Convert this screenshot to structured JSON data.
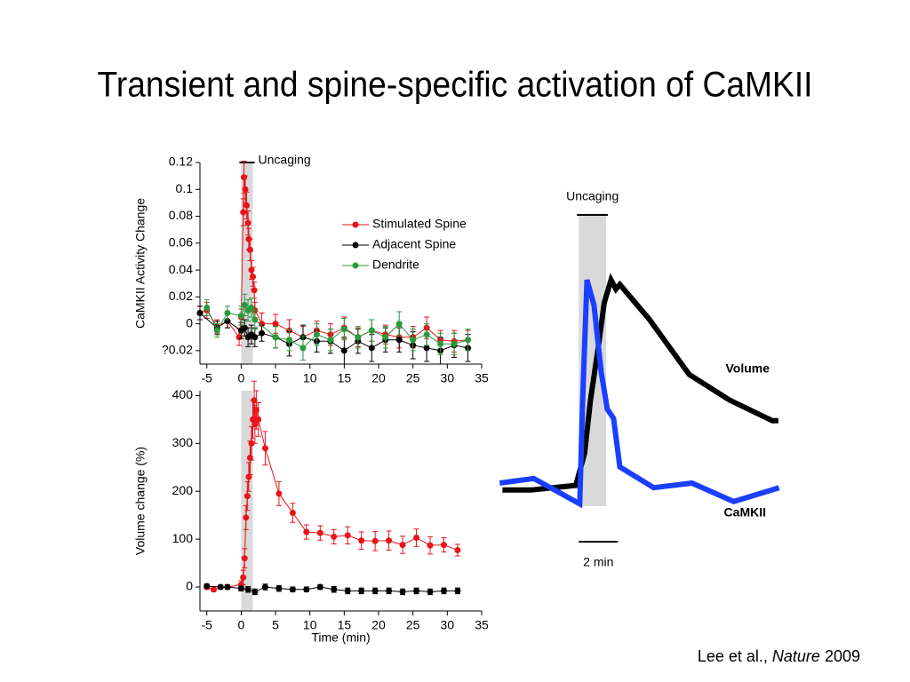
{
  "title": "Transient and spine-specific activation of CaMKII",
  "citation": {
    "authors": "Lee et al.,",
    "journal": "Nature",
    "year": "2009"
  },
  "chart_data": [
    {
      "type": "line",
      "ylabel": "CaMKII Activity Change",
      "xlim": [
        -6,
        35
      ],
      "xticks": [
        -5,
        0,
        5,
        10,
        15,
        20,
        25,
        30,
        35
      ],
      "ylim": [
        -0.03,
        0.12
      ],
      "yticks": [
        {
          "value": -0.02,
          "label": "?0.02"
        },
        0,
        0.02,
        0.04,
        0.06,
        0.08,
        0.1,
        0.12
      ],
      "shade": [
        0,
        1.7
      ],
      "shade_label": "Uncaging",
      "legend": "upper right",
      "series": [
        {
          "name": "Stimulated Spine",
          "color": "#e8141b",
          "x": [
            -6,
            -5,
            -3.5,
            -2,
            -0.3,
            0,
            0.3,
            0.4,
            0.6,
            0.8,
            1,
            1.1,
            1.3,
            1.5,
            1.7,
            1.9,
            2,
            3,
            5,
            7,
            9,
            11,
            13,
            15,
            17,
            19,
            21,
            23,
            25,
            27,
            29,
            31,
            33
          ],
          "values": [
            0.008,
            0.01,
            -0.002,
            0.002,
            -0.01,
            0.005,
            0.083,
            0.109,
            0.1,
            0.088,
            0.075,
            0.063,
            0.055,
            0.04,
            0.035,
            0.025,
            0.01,
            0,
            0,
            -0.005,
            -0.01,
            -0.005,
            -0.008,
            -0.003,
            -0.01,
            -0.005,
            -0.008,
            -0.01,
            -0.01,
            -0.003,
            -0.012,
            -0.013,
            -0.012
          ],
          "errors": [
            0.005,
            0.006,
            0.005,
            0.005,
            0.006,
            0.006,
            0.01,
            0.012,
            0.01,
            0.01,
            0.009,
            0.008,
            0.008,
            0.007,
            0.007,
            0.006,
            0.006,
            0.008,
            0.007,
            0.008,
            0.008,
            0.007,
            0.008,
            0.008,
            0.007,
            0.008,
            0.007,
            0.008,
            0.008,
            0.008,
            0.007,
            0.008,
            0.007
          ]
        },
        {
          "name": "Adjacent Spine",
          "color": "#000000",
          "x": [
            -6,
            -3.5,
            -2,
            0,
            0.5,
            1,
            1.5,
            2,
            3,
            5,
            7,
            9,
            11,
            13,
            15,
            17,
            19,
            21,
            23,
            25,
            27,
            29,
            31,
            33
          ],
          "values": [
            0.008,
            -0.003,
            0.002,
            -0.005,
            -0.003,
            -0.01,
            -0.008,
            -0.01,
            -0.007,
            -0.01,
            -0.015,
            -0.01,
            -0.013,
            -0.013,
            -0.02,
            -0.013,
            -0.018,
            -0.012,
            -0.012,
            -0.016,
            -0.018,
            -0.02,
            -0.016,
            -0.018
          ],
          "errors": [
            0.005,
            0.005,
            0.005,
            0.006,
            0.006,
            0.007,
            0.007,
            0.007,
            0.006,
            0.008,
            0.009,
            0.009,
            0.008,
            0.009,
            0.01,
            0.009,
            0.01,
            0.009,
            0.009,
            0.01,
            0.01,
            0.01,
            0.009,
            0.01
          ]
        },
        {
          "name": "Dendrite",
          "color": "#2a9a3c",
          "x": [
            -5,
            -3.5,
            -2,
            0,
            0.5,
            1,
            1.5,
            2,
            5,
            7,
            9,
            11,
            13,
            15,
            17,
            19,
            21,
            23,
            25,
            27,
            29,
            31,
            33
          ],
          "values": [
            0.012,
            -0.005,
            0.008,
            0.006,
            0.014,
            0.01,
            0.012,
            0.003,
            -0.01,
            -0.012,
            -0.018,
            -0.008,
            -0.012,
            -0.004,
            -0.01,
            -0.005,
            -0.01,
            0,
            -0.012,
            -0.008,
            -0.015,
            -0.015,
            -0.012
          ],
          "errors": [
            0.006,
            0.005,
            0.005,
            0.007,
            0.008,
            0.008,
            0.007,
            0.007,
            0.008,
            0.008,
            0.009,
            0.008,
            0.008,
            0.008,
            0.008,
            0.008,
            0.008,
            0.009,
            0.008,
            0.008,
            0.008,
            0.008,
            0.008
          ]
        }
      ]
    },
    {
      "type": "line",
      "xlabel": "Time (min)",
      "ylabel": "Volume change (%)",
      "xlim": [
        -6,
        35
      ],
      "xticks": [
        -5,
        0,
        5,
        10,
        15,
        20,
        25,
        30,
        35
      ],
      "ylim": [
        -50,
        410
      ],
      "yticks": [
        0,
        100,
        200,
        300,
        400
      ],
      "shade": [
        0,
        1.7
      ],
      "series": [
        {
          "name": "Stimulated Spine",
          "color": "#e8141b",
          "x": [
            -5,
            -4,
            -2,
            0,
            0.3,
            0.5,
            0.7,
            0.9,
            1.1,
            1.3,
            1.5,
            1.7,
            1.9,
            2,
            2.2,
            2.5,
            3.5,
            5.5,
            7.5,
            9.5,
            11.5,
            13.5,
            15.5,
            17.5,
            19.5,
            21.5,
            23.5,
            25.5,
            27.5,
            29.5,
            31.5
          ],
          "values": [
            0,
            -5,
            0,
            5,
            20,
            60,
            145,
            190,
            230,
            270,
            300,
            350,
            390,
            340,
            370,
            350,
            290,
            195,
            155,
            115,
            113,
            105,
            108,
            97,
            96,
            97,
            88,
            103,
            87,
            88,
            77
          ],
          "errors": [
            5,
            5,
            5,
            8,
            15,
            20,
            25,
            30,
            30,
            35,
            35,
            40,
            40,
            40,
            40,
            35,
            35,
            25,
            20,
            15,
            15,
            15,
            18,
            18,
            20,
            20,
            18,
            18,
            18,
            15,
            12
          ]
        },
        {
          "name": "Adjacent Spine",
          "color": "#000000",
          "x": [
            -5,
            -3,
            -2,
            0,
            1,
            2,
            3.5,
            5.5,
            7.5,
            9.5,
            11.5,
            13.5,
            15.5,
            17.5,
            19.5,
            21.5,
            23.5,
            25.5,
            27.5,
            29.5,
            31.5
          ],
          "values": [
            2,
            0,
            0,
            -3,
            -5,
            -10,
            0,
            -3,
            -5,
            -5,
            0,
            -5,
            -8,
            -8,
            -8,
            -8,
            -10,
            -8,
            -10,
            -8,
            -8
          ],
          "errors": [
            4,
            4,
            4,
            5,
            6,
            6,
            6,
            6,
            5,
            5,
            5,
            6,
            6,
            6,
            6,
            6,
            6,
            6,
            6,
            6,
            6
          ]
        }
      ]
    },
    {
      "type": "line",
      "xlim": [
        -0.2,
        14.2
      ],
      "ylim": [
        0,
        1
      ],
      "shade": [
        3.9,
        5.3
      ],
      "shade_label": "Uncaging",
      "scale_bar": {
        "length": 2,
        "label": "2 min"
      },
      "series": [
        {
          "name": "Volume",
          "color": "#000000",
          "x": [
            0,
            1.45,
            3.75,
            4.2,
            4.5,
            4.9,
            5.2,
            5.55,
            5.8,
            6,
            7.5,
            9.55,
            11.6,
            13.8,
            14.1
          ],
          "values": [
            0.07,
            0.07,
            0.09,
            0.23,
            0.46,
            0.69,
            0.88,
            0.98,
            0.94,
            0.96,
            0.81,
            0.57,
            0.46,
            0.37,
            0.37
          ]
        },
        {
          "name": "CaMKII",
          "color": "#1a3fff",
          "x": [
            -0.14,
            1.6,
            3.95,
            4.1,
            4.32,
            4.68,
            5.05,
            5.36,
            5.68,
            6,
            7.73,
            9.68,
            11.82,
            14.14
          ],
          "values": [
            0.1,
            0.12,
            0.01,
            0.46,
            0.98,
            0.87,
            0.58,
            0.42,
            0.38,
            0.17,
            0.08,
            0.1,
            0.02,
            0.08
          ]
        }
      ]
    }
  ]
}
